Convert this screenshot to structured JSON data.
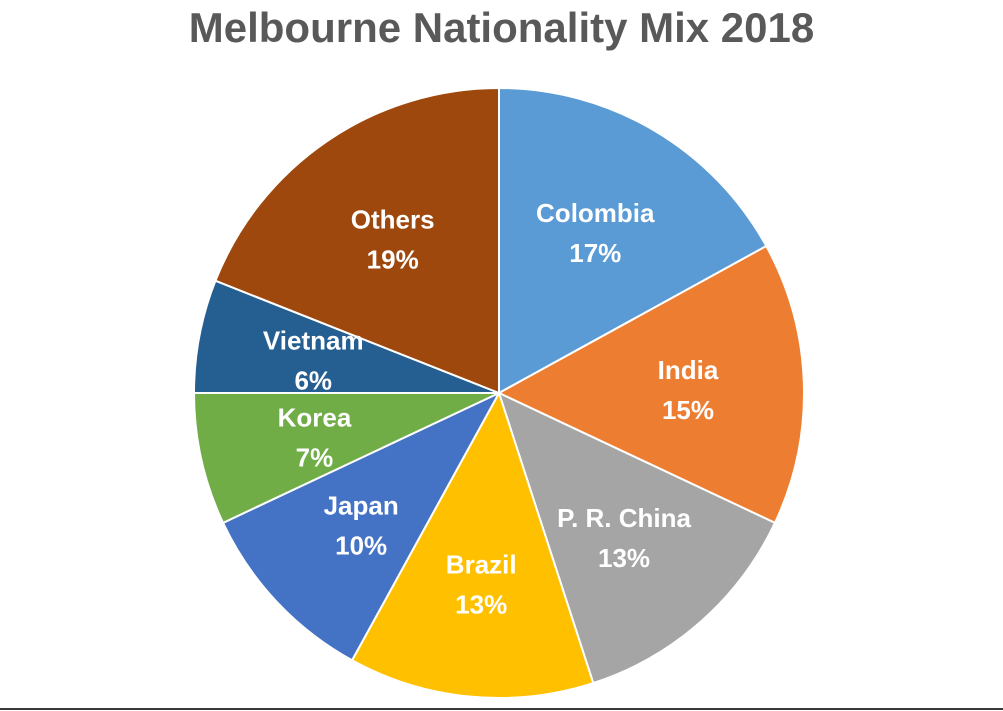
{
  "chart_data": {
    "type": "pie",
    "title": "Melbourne Nationality Mix 2018",
    "start_angle_deg": 0,
    "direction": "clockwise",
    "slices": [
      {
        "label": "Colombia",
        "value": 17,
        "value_text": "17%",
        "color": "#5B9BD5"
      },
      {
        "label": "India",
        "value": 15,
        "value_text": "15%",
        "color": "#ED7D31"
      },
      {
        "label": "P. R. China",
        "value": 13,
        "value_text": "13%",
        "color": "#A5A5A5"
      },
      {
        "label": "Brazil",
        "value": 13,
        "value_text": "13%",
        "color": "#FFC000"
      },
      {
        "label": "Japan",
        "value": 10,
        "value_text": "10%",
        "color": "#4472C4"
      },
      {
        "label": "Korea",
        "value": 7,
        "value_text": "7%",
        "color": "#70AD47"
      },
      {
        "label": "Vietnam",
        "value": 6,
        "value_text": "6%",
        "color": "#255E91"
      },
      {
        "label": "Others",
        "value": 19,
        "value_text": "19%",
        "color": "#9E480E"
      }
    ],
    "legend": "none"
  }
}
